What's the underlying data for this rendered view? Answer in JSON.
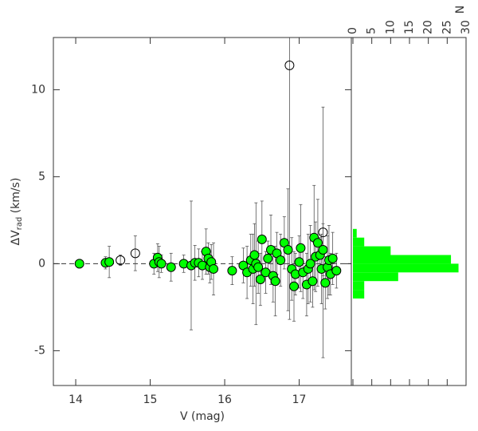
{
  "chart_data": [
    {
      "type": "scatter",
      "xlabel": "V (mag)",
      "ylabel": [
        "ΔV",
        "rad",
        " (km/s)"
      ],
      "xlim": [
        13.7,
        17.7
      ],
      "ylim": [
        -7,
        13
      ],
      "xticks": [
        14,
        15,
        16,
        17
      ],
      "yticks": [
        -5,
        0,
        5,
        10
      ],
      "hline": 0,
      "series": [
        {
          "color": "#00ff00",
          "marker": "filled",
          "x": [
            14.05,
            14.4,
            14.45,
            15.05,
            15.1,
            15.12,
            15.15,
            15.28,
            15.45,
            15.55,
            15.6,
            15.65,
            15.7,
            15.75,
            15.78,
            15.8,
            15.82,
            15.85,
            16.1,
            16.25,
            16.3,
            16.35,
            16.38,
            16.4,
            16.42,
            16.45,
            16.48,
            16.5,
            16.55,
            16.58,
            16.62,
            16.65,
            16.68,
            16.7,
            16.75,
            16.8,
            16.85,
            16.9,
            16.93,
            16.95,
            17.0,
            17.02,
            17.05,
            17.1,
            17.12,
            17.15,
            17.18,
            17.2,
            17.22,
            17.25,
            17.28,
            17.3,
            17.32,
            17.35,
            17.38,
            17.4,
            17.42,
            17.45,
            17.5
          ],
          "y": [
            0,
            0.05,
            0.1,
            0,
            0.35,
            0.1,
            0,
            -0.2,
            0,
            -0.1,
            0.05,
            0.05,
            -0.1,
            0.7,
            0.3,
            -0.2,
            0.1,
            -0.3,
            -0.4,
            -0.1,
            -0.5,
            0.2,
            -0.3,
            0.5,
            0,
            -0.2,
            -0.9,
            1.4,
            -0.5,
            0.3,
            0.8,
            -0.7,
            -1.0,
            0.6,
            0.2,
            1.2,
            0.8,
            -0.3,
            -1.3,
            -0.6,
            0.1,
            0.9,
            -0.5,
            -1.2,
            -0.3,
            0,
            -1.0,
            1.5,
            0.4,
            1.2,
            0.5,
            -0.3,
            0.8,
            -1.1,
            -0.2,
            0.2,
            -0.6,
            0.3,
            -0.4
          ],
          "err": [
            0.25,
            0.35,
            0.9,
            0.6,
            0.8,
            0.9,
            0.5,
            0.8,
            0.5,
            3.7,
            1.0,
            0.8,
            0.8,
            1.3,
            0.9,
            0.9,
            1.0,
            1.5,
            0.8,
            1.0,
            1.5,
            1.5,
            2.0,
            1.8,
            3.5,
            1.5,
            1.5,
            2.2,
            1.2,
            1.0,
            2.0,
            1.5,
            2.0,
            1.2,
            1.5,
            1.5,
            3.5,
            1.8,
            2.0,
            1.2,
            1.5,
            2.5,
            1.5,
            1.8,
            2.0,
            2.2,
            1.5,
            3.0,
            2.0,
            2.5,
            1.0,
            2.0,
            1.5,
            1.5,
            1.8,
            2.0,
            1.2,
            1.5,
            1.0
          ]
        },
        {
          "color": "#000000",
          "marker": "open",
          "x": [
            14.6,
            14.8,
            16.87,
            17.32
          ],
          "y": [
            0.2,
            0.6,
            11.4,
            1.8
          ],
          "err": [
            0.3,
            1.0,
            14.6,
            7.2
          ]
        }
      ]
    },
    {
      "type": "histogram",
      "orientation": "horizontal",
      "xlabel": "N",
      "bins": [
        -2,
        -1.5,
        -1,
        -0.5,
        0,
        0.5,
        1,
        1.5,
        2
      ],
      "counts": [
        3,
        3,
        12,
        28,
        26,
        10,
        3,
        1
      ],
      "xlim": [
        0,
        30
      ],
      "xticks": [
        0,
        5,
        10,
        15,
        20,
        25,
        30
      ],
      "ylim": [
        -7,
        13
      ],
      "color": "#00ff00"
    }
  ]
}
